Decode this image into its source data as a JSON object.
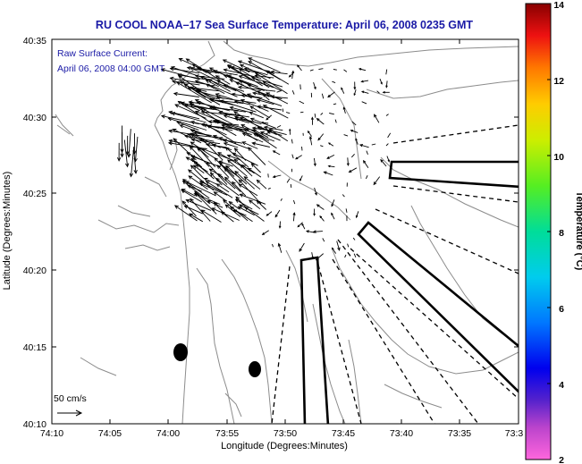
{
  "title": "RU COOL  NOAA–17  Sea Surface Temperature:  April 06, 2008 0235 GMT",
  "current_label_1": "Raw Surface Current:",
  "current_label_2": "April 06, 2008 04:00 GMT",
  "scale_label": "50 cm/s",
  "x_axis_label": "Longitude (Degrees:Minutes)",
  "y_axis_label": "Latitude (Degrees:Minutes)",
  "x_ticks": [
    "74:10",
    "74:05",
    "74:00",
    "73:55",
    "73:50",
    "73:45",
    "73:40",
    "73:35",
    "73:3"
  ],
  "y_ticks": [
    "40:35",
    "40:30",
    "40:25",
    "40:20",
    "40:15",
    "40:10"
  ],
  "colorbar": {
    "label": "Temperature (°C)",
    "ticks": [
      "14",
      "12",
      "10",
      "8",
      "6",
      "4",
      "2"
    ],
    "min": 2,
    "max": 14
  },
  "colors": {
    "title": "#1a1aa6",
    "contour": "#8c8c8c",
    "vector": "#000000"
  }
}
